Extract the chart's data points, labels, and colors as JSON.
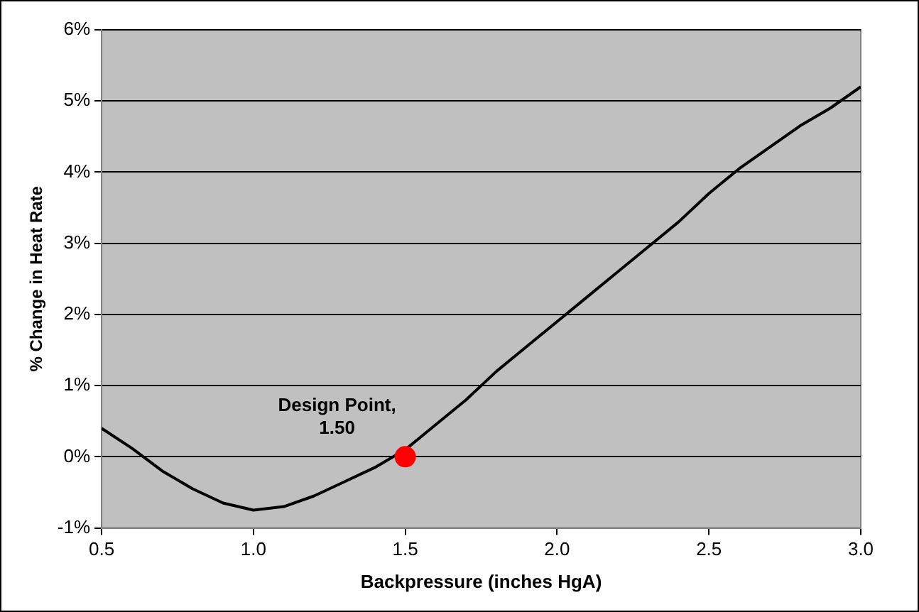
{
  "chart_data": {
    "type": "line",
    "xlabel": "Backpressure (inches HgA)",
    "ylabel": "% Change in Heat Rate",
    "xlim": [
      0.5,
      3.0
    ],
    "xticks": [
      0.5,
      {
        "value": 1,
        "label": "1.0"
      },
      1.5,
      {
        "value": 2,
        "label": "2.0"
      },
      2.5,
      {
        "value": 3,
        "label": "3.0"
      }
    ],
    "ylim": [
      -1,
      6
    ],
    "yticks": [
      {
        "value": -1,
        "label": "-1%"
      },
      {
        "value": 0,
        "label": "0%"
      },
      {
        "value": 1,
        "label": "1%"
      },
      {
        "value": 2,
        "label": "2%"
      },
      {
        "value": 3,
        "label": "3%"
      },
      {
        "value": 4,
        "label": "4%"
      },
      {
        "value": 5,
        "label": "5%"
      },
      {
        "value": 6,
        "label": "6%"
      }
    ],
    "grid": "y",
    "legend": false,
    "series": [
      {
        "color": "#000000",
        "x": [
          0.5,
          0.6,
          0.7,
          0.8,
          0.9,
          1.0,
          1.1,
          1.2,
          1.3,
          1.4,
          1.5,
          1.6,
          1.7,
          1.8,
          1.9,
          2.0,
          2.1,
          2.2,
          2.3,
          2.4,
          2.5,
          2.6,
          2.7,
          2.8,
          2.9,
          3.0
        ],
        "values": [
          0.4,
          0.12,
          -0.2,
          -0.45,
          -0.65,
          -0.75,
          -0.7,
          -0.55,
          -0.35,
          -0.15,
          0.1,
          0.45,
          0.8,
          1.2,
          1.55,
          1.9,
          2.25,
          2.6,
          2.95,
          3.3,
          3.7,
          4.05,
          4.35,
          4.65,
          4.9,
          5.2
        ]
      },
      {
        "type": "scatter",
        "color": "#ff0000",
        "x": [
          1.5
        ],
        "values": [
          0
        ]
      }
    ],
    "annotations": [
      {
        "text": "Design Point,\n1.50",
        "x": 1.5,
        "y": 0
      }
    ]
  }
}
